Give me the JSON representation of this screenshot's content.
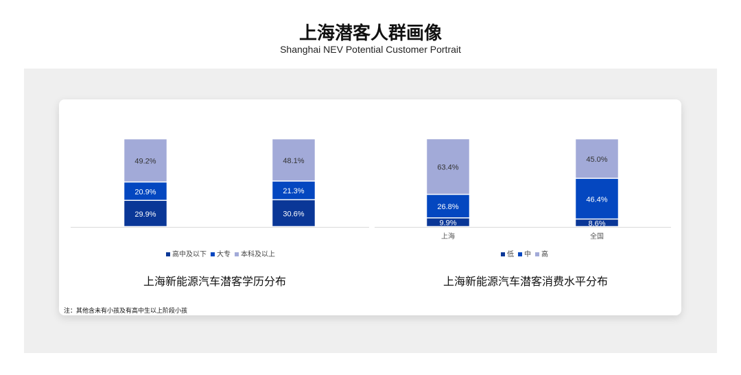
{
  "header": {
    "title": "上海潜客人群画像",
    "subtitle": "Shanghai NEV Potential Customer Portrait"
  },
  "note": "注：其他含未有小孩及有高中生以上阶段小孩",
  "colors": {
    "dark": "#0a3797",
    "mid": "#0447c0",
    "light": "#a2aad8"
  },
  "chart_data": [
    {
      "type": "bar",
      "stacked": true,
      "title": "上海新能源汽车潜客学历分布",
      "categories": [
        "",
        ""
      ],
      "series": [
        {
          "name": "高中及以下",
          "values": [
            29.9,
            30.6
          ],
          "labels": [
            "29.9%",
            "30.6%"
          ]
        },
        {
          "name": "大专",
          "values": [
            20.9,
            21.3
          ],
          "labels": [
            "20.9%",
            "21.3%"
          ]
        },
        {
          "name": "本科及以上",
          "values": [
            49.2,
            48.1
          ],
          "labels": [
            "49.2%",
            "48.1%"
          ]
        }
      ],
      "ylim": [
        0,
        100
      ],
      "grid": false,
      "legend": "bottom"
    },
    {
      "type": "bar",
      "stacked": true,
      "title": "上海新能源汽车潜客消费水平分布",
      "categories": [
        "上海",
        "全国"
      ],
      "series": [
        {
          "name": "低",
          "values": [
            9.9,
            8.6
          ],
          "labels": [
            "9.9%",
            "8.6%"
          ]
        },
        {
          "name": "中",
          "values": [
            26.8,
            46.4
          ],
          "labels": [
            "26.8%",
            "46.4%"
          ]
        },
        {
          "name": "高",
          "values": [
            63.4,
            45.0
          ],
          "labels": [
            "63.4%",
            "45.0%"
          ]
        }
      ],
      "ylim": [
        0,
        100
      ],
      "grid": false,
      "legend": "bottom"
    }
  ]
}
